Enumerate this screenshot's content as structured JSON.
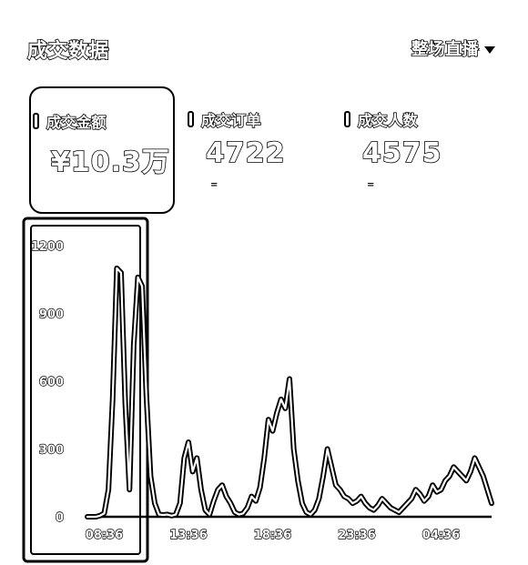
{
  "header": {
    "title": "成交数据",
    "scope_selector": {
      "label": "整场直播"
    }
  },
  "kpis": [
    {
      "label": "成交金额",
      "value": "¥10.3万",
      "sub": "",
      "selected": true
    },
    {
      "label": "成交订单",
      "value": "4722",
      "sub": "=",
      "selected": false
    },
    {
      "label": "成交人数",
      "value": "4575",
      "sub": "=",
      "selected": false
    }
  ],
  "chart_data": {
    "type": "line",
    "title": "",
    "xlabel": "",
    "ylabel": "",
    "x_tick_labels": [
      "08:36",
      "13:36",
      "18:36",
      "23:36",
      "04:36"
    ],
    "y_tick_labels": [
      "1200",
      "900",
      "600",
      "300",
      "0"
    ],
    "ylim": [
      0,
      1200
    ],
    "grid": false,
    "legend": "none",
    "series": [
      {
        "name": "",
        "x": [
          "07:36",
          "07:51",
          "08:06",
          "08:21",
          "08:36",
          "08:51",
          "09:06",
          "09:21",
          "09:36",
          "09:51",
          "10:06",
          "10:21",
          "10:36",
          "10:51",
          "11:06",
          "11:21",
          "11:36",
          "11:51",
          "12:06",
          "12:21",
          "12:36",
          "12:51",
          "13:06",
          "13:21",
          "13:36",
          "13:51",
          "14:06",
          "14:21",
          "14:36",
          "14:51",
          "15:06",
          "15:21",
          "15:36",
          "15:51",
          "16:06",
          "16:21",
          "16:36",
          "16:51",
          "17:06",
          "17:21",
          "17:36",
          "17:51",
          "18:06",
          "18:21",
          "18:36",
          "18:51",
          "19:06",
          "19:21",
          "19:36",
          "19:51",
          "20:06",
          "20:21",
          "20:36",
          "20:51",
          "21:06",
          "21:21",
          "21:36",
          "21:51",
          "22:06",
          "22:21",
          "22:36",
          "22:51",
          "23:06",
          "23:21",
          "23:36",
          "23:51",
          "00:06",
          "00:21",
          "00:36",
          "00:51",
          "01:06",
          "01:21",
          "01:36",
          "01:51",
          "02:06",
          "02:21",
          "02:36",
          "02:51",
          "03:06",
          "03:21",
          "03:36",
          "03:51",
          "04:06",
          "04:21",
          "04:36",
          "04:51",
          "05:06",
          "05:21",
          "05:36",
          "05:51",
          "06:06",
          "06:21",
          "06:36",
          "06:51",
          "07:06",
          "07:21",
          "07:36"
        ],
        "values": [
          0,
          0,
          0,
          5,
          15,
          120,
          520,
          1100,
          1080,
          500,
          120,
          760,
          1060,
          1020,
          540,
          180,
          60,
          10,
          8,
          10,
          5,
          10,
          60,
          260,
          330,
          200,
          260,
          120,
          30,
          10,
          70,
          120,
          140,
          90,
          60,
          20,
          10,
          15,
          40,
          90,
          70,
          130,
          260,
          430,
          380,
          460,
          520,
          480,
          610,
          300,
          160,
          60,
          20,
          10,
          30,
          80,
          180,
          300,
          220,
          140,
          120,
          90,
          80,
          60,
          70,
          90,
          60,
          40,
          30,
          50,
          80,
          60,
          40,
          30,
          20,
          40,
          60,
          80,
          120,
          100,
          70,
          90,
          140,
          110,
          120,
          160,
          180,
          220,
          200,
          180,
          160,
          200,
          260,
          220,
          180,
          120,
          60
        ]
      }
    ]
  }
}
